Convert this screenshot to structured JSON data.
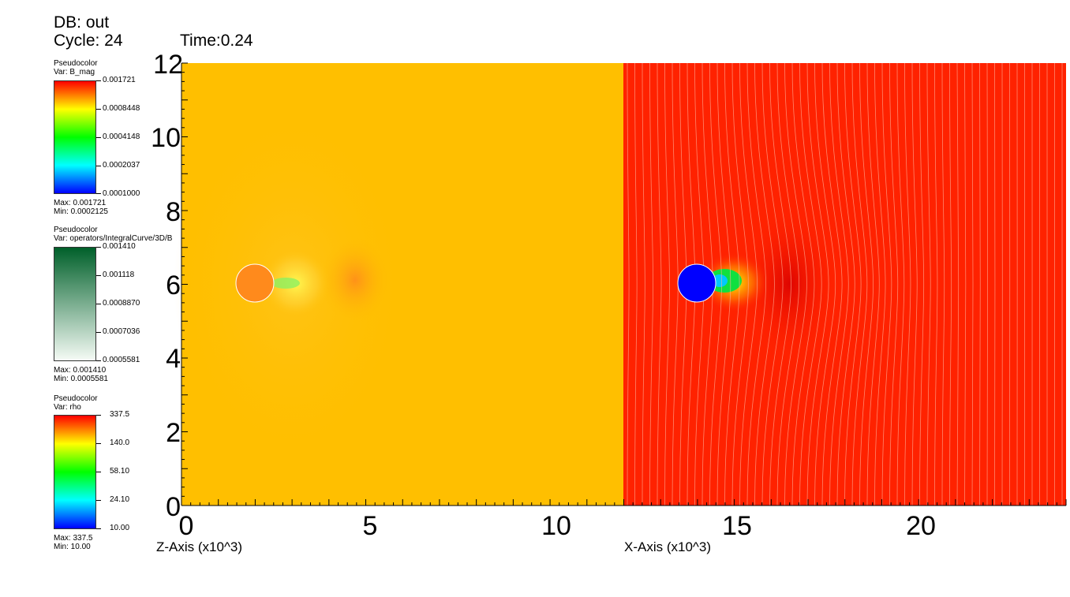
{
  "header": {
    "db_label": "DB: out",
    "cycle_label": "Cycle: 24",
    "time_label": "Time:0.24"
  },
  "legends": [
    {
      "type_label": "Pseudocolor",
      "var_label": "Var: B_mag",
      "ticks": [
        "0.001721",
        "0.0008448",
        "0.0004148",
        "0.0002037",
        "0.0001000"
      ],
      "max_label": "Max:  0.001721",
      "min_label": "Min:  0.0002125",
      "colors": [
        "#ff0000",
        "#ffff00",
        "#00ff00",
        "#00ffff",
        "#0000ff"
      ]
    },
    {
      "type_label": "Pseudocolor",
      "var_label": "Var: operators/IntegralCurve/3D/B",
      "ticks": [
        "0.001410",
        "0.001118",
        "0.0008870",
        "0.0007036",
        "0.0005581"
      ],
      "max_label": "Max:  0.001410",
      "min_label": "Min:  0.0005581",
      "colors": [
        "#00602a",
        "#f5fbf5"
      ]
    },
    {
      "type_label": "Pseudocolor",
      "var_label": "Var: rho",
      "ticks": [
        "337.5",
        "140.0",
        "58.10",
        "24.10",
        "10.00"
      ],
      "max_label": "Max:  337.5",
      "min_label": "Min:  10.00",
      "colors": [
        "#ff0000",
        "#ffff00",
        "#00ff00",
        "#00ffff",
        "#0000ff"
      ]
    }
  ],
  "plot": {
    "y_ticks": [
      "0",
      "2",
      "4",
      "6",
      "8",
      "10",
      "12"
    ],
    "x_ticks": [
      "0",
      "5",
      "10",
      "15",
      "20"
    ],
    "x_axis_left_title": "Z-Axis (x10^3)",
    "x_axis_right_title": "X-Axis (x10^3)",
    "left_panel_color": "#ffbf00",
    "right_panel_color": "#ff2200",
    "obstacle_left_color": "#ff8a1c",
    "obstacle_right_color": "#0000ff"
  }
}
